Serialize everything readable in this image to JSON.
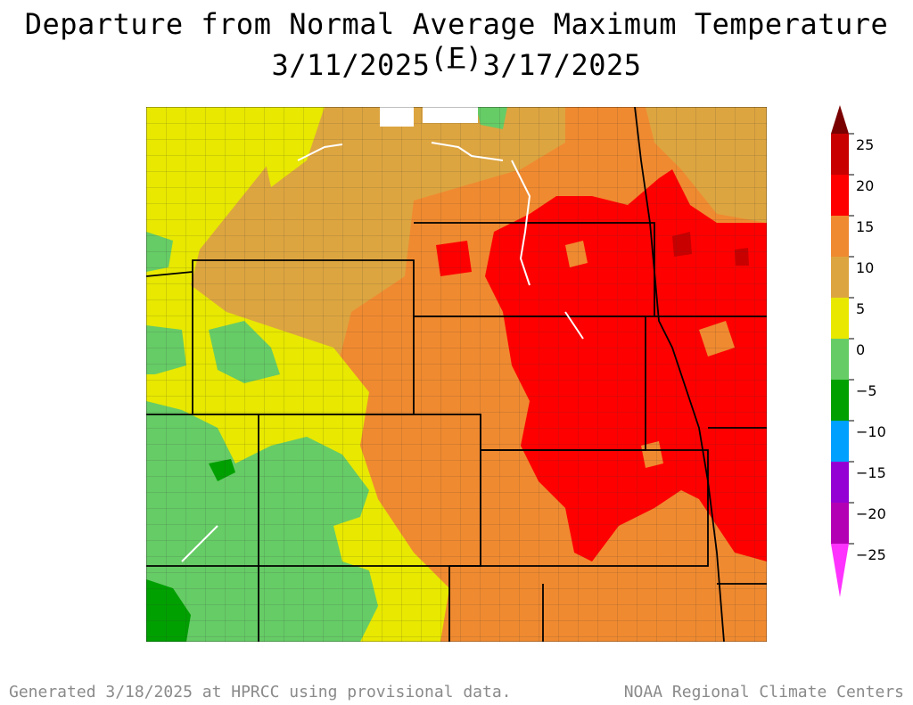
{
  "title": {
    "line1": "Departure from Normal Average Maximum Temperature (F)",
    "line2": "3/11/2025 – 3/17/2025"
  },
  "legend": {
    "labels": [
      "25",
      "20",
      "15",
      "10",
      "5",
      "0",
      "−5",
      "−10",
      "−15",
      "−20",
      "−25"
    ],
    "colors": [
      "#7a0000",
      "#c80000",
      "#ff0000",
      "#f08a30",
      "#dda540",
      "#e8e800",
      "#66cc66",
      "#00a000",
      "#00a0ff",
      "#9400d3",
      "#b400b4",
      "#ff33ff"
    ]
  },
  "footer": {
    "left": "Generated 3/18/2025 at HPRCC using provisional data.",
    "right": "NOAA Regional Climate Centers"
  }
}
